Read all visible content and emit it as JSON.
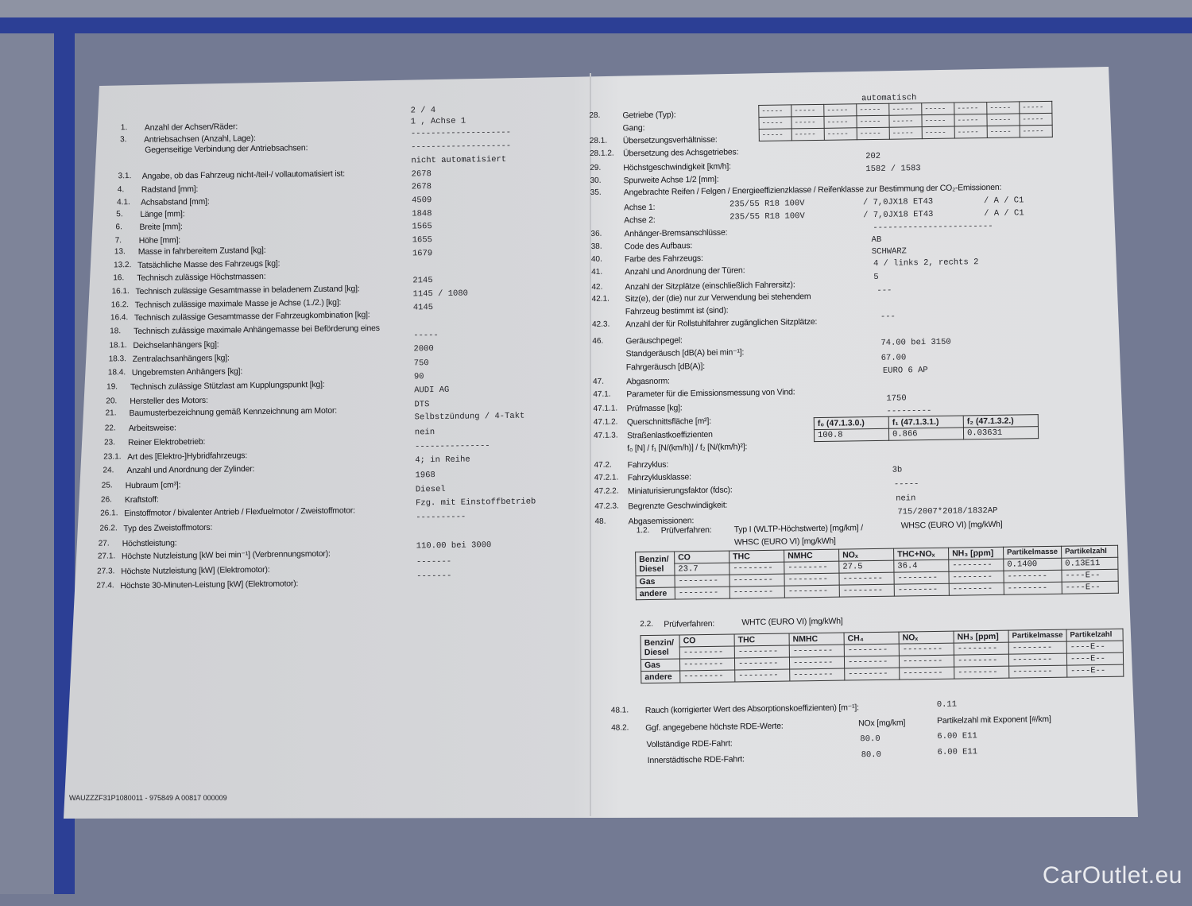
{
  "left": {
    "labels": [
      {
        "num": "1.",
        "text": "Anzahl der Achsen/Räder:"
      },
      {
        "num": "3.",
        "text": "Antriebsachsen (Anzahl, Lage):"
      },
      {
        "num": "",
        "text": "Gegenseitige Verbindung der Antriebsachsen:"
      },
      {
        "num": "3.1.",
        "text": "Angabe, ob das Fahrzeug nicht-/teil-/ vollautomatisiert ist:"
      },
      {
        "num": "4.",
        "text": "Radstand [mm]:"
      },
      {
        "num": "4.1.",
        "text": "Achsabstand [mm]:"
      },
      {
        "num": "5.",
        "text": "Länge [mm]:"
      },
      {
        "num": "6.",
        "text": "Breite [mm]:"
      },
      {
        "num": "7.",
        "text": "Höhe [mm]:"
      },
      {
        "num": "13.",
        "text": "Masse in fahrbereitem Zustand [kg]:"
      },
      {
        "num": "13.2.",
        "text": "Tatsächliche Masse des Fahrzeugs [kg]:"
      },
      {
        "num": "16.",
        "text": "Technisch zulässige Höchstmassen:"
      },
      {
        "num": "16.1.",
        "text": "Technisch zulässige Gesamtmasse in beladenem Zustand [kg]:"
      },
      {
        "num": "16.2.",
        "text": "Technisch zulässige maximale Masse je Achse (1./2.) [kg]:"
      },
      {
        "num": "16.4.",
        "text": "Technisch zulässige Gesamtmasse der Fahrzeugkombination [kg]:"
      },
      {
        "num": "18.",
        "text": "Technisch zulässige maximale Anhängemasse bei Beförderung eines"
      },
      {
        "num": "18.1.",
        "text": "Deichselanhängers [kg]:"
      },
      {
        "num": "18.3.",
        "text": "Zentralachsanhängers [kg]:"
      },
      {
        "num": "18.4.",
        "text": "Ungebremsten Anhängers [kg]:"
      },
      {
        "num": "19.",
        "text": "Technisch zulässige Stützlast am Kupplungspunkt [kg]:"
      },
      {
        "num": "20.",
        "text": "Hersteller des Motors:"
      },
      {
        "num": "21.",
        "text": "Baumusterbezeichnung gemäß Kennzeichnung am Motor:"
      },
      {
        "num": "22.",
        "text": "Arbeitsweise:"
      },
      {
        "num": "23.",
        "text": "Reiner Elektrobetrieb:"
      },
      {
        "num": "23.1.",
        "text": "Art des [Elektro-]Hybridfahrzeugs:"
      },
      {
        "num": "24.",
        "text": "Anzahl und Anordnung der Zylinder:"
      },
      {
        "num": "25.",
        "text": "Hubraum [cm³]:"
      },
      {
        "num": "26.",
        "text": "Kraftstoff:"
      },
      {
        "num": "26.1.",
        "text": "Einstoffmotor / bivalenter Antrieb / Flexfuelmotor / Zweistoffmotor:"
      },
      {
        "num": "26.2.",
        "text": "Typ des Zweistoffmotors:"
      },
      {
        "num": "27.",
        "text": "Höchstleistung:"
      },
      {
        "num": "27.1.",
        "text": "Höchste Nutzleistung [kW bei min⁻¹] (Verbrennungsmotor):"
      },
      {
        "num": "27.3.",
        "text": "Höchste Nutzleistung [kW] (Elektromotor):"
      },
      {
        "num": "27.4.",
        "text": "Höchste 30-Minuten-Leistung [kW] (Elektromotor):"
      }
    ],
    "values": [
      "2  /  4",
      "1  ,  Achse  1",
      "--------------------",
      "--------------------",
      "nicht automatisiert",
      "2678",
      "2678",
      "4509",
      "1848",
      "1565",
      "1655",
      "1679",
      "2145",
      "1145   /  1080",
      "4145",
      "-----",
      "2000",
      "750",
      "90",
      "AUDI AG",
      "DTS",
      "Selbstzündung / 4-Takt",
      "nein",
      "---------------",
      "4; in Reihe",
      "1968",
      "Diesel",
      "Fzg. mit Einstoffbetrieb",
      "----------",
      "110.00  bei 3000",
      "-------",
      "-------"
    ]
  },
  "right": {
    "labels": [
      {
        "num": "28.",
        "text": "Getriebe (Typ):"
      },
      {
        "num": "",
        "text": "Gang:"
      },
      {
        "num": "28.1.",
        "text": "Übersetzungsverhältnisse:"
      },
      {
        "num": "28.1.2.",
        "text": "Übersetzung des Achsgetriebes:"
      },
      {
        "num": "29.",
        "text": "Höchstgeschwindigkeit [km/h]:"
      },
      {
        "num": "30.",
        "text": "Spurweite Achse 1/2 [mm]:"
      },
      {
        "num": "35.",
        "text": "Angebrachte Reifen / Felgen / Energieeffizienzklasse / Reifenklasse zur Bestimmung der CO₂-Emissionen:"
      },
      {
        "num": "",
        "text": "Achse 1:"
      },
      {
        "num": "",
        "text": "Achse 2:"
      },
      {
        "num": "36.",
        "text": "Anhänger-Bremsanschlüsse:"
      },
      {
        "num": "38.",
        "text": "Code des Aufbaus:"
      },
      {
        "num": "40.",
        "text": "Farbe des Fahrzeugs:"
      },
      {
        "num": "41.",
        "text": "Anzahl und Anordnung der Türen:"
      },
      {
        "num": "42.",
        "text": "Anzahl der Sitzplätze (einschließlich Fahrersitz):"
      },
      {
        "num": "42.1.",
        "text": "Sitz(e), der (die) nur zur Verwendung bei stehendem"
      },
      {
        "num": "",
        "text": "Fahrzeug bestimmt ist (sind):"
      },
      {
        "num": "42.3.",
        "text": "Anzahl der für Rollstuhlfahrer zugänglichen Sitzplätze:"
      },
      {
        "num": "46.",
        "text": "Geräuschpegel:"
      },
      {
        "num": "",
        "text": "Standgeräusch [dB(A) bei min⁻¹]:"
      },
      {
        "num": "",
        "text": "Fahrgeräusch [dB(A)]:"
      },
      {
        "num": "47.",
        "text": "Abgasnorm:"
      },
      {
        "num": "47.1.",
        "text": "Parameter für die Emissionsmessung von Vind:"
      },
      {
        "num": "47.1.1.",
        "text": "Prüfmasse [kg]:"
      },
      {
        "num": "47.1.2.",
        "text": "Querschnittsfläche [m²]:"
      },
      {
        "num": "47.1.3.",
        "text": "Straßenlastkoeffizienten"
      },
      {
        "num": "",
        "text": "f₀ [N] / f₁ [N/(km/h)] / f₂ [N/(km/h)²]:"
      },
      {
        "num": "47.2.",
        "text": "Fahrzyklus:"
      },
      {
        "num": "47.2.1.",
        "text": "Fahrzyklusklasse:"
      },
      {
        "num": "47.2.2.",
        "text": "Miniaturisierungsfaktor (fdsc):"
      },
      {
        "num": "47.2.3.",
        "text": "Begrenzte Geschwindigkeit:"
      },
      {
        "num": "48.",
        "text": "Abgasemissionen:"
      }
    ],
    "values": [
      "automatisch",
      "202",
      "1582  /  1583",
      "235/55 R18 100V",
      "235/55 R18 100V",
      "/ 7,0JX18 ET43",
      "/ 7,0JX18 ET43",
      "/ A    / C1",
      "/ A    / C1",
      "------------------------",
      "AB",
      "SCHWARZ",
      "4   / links 2, rechts 2",
      "5",
      "---",
      "---",
      "74.00  bei 3150",
      "67.00",
      "EURO 6 AP",
      "1750",
      "---------",
      "3b",
      "-----",
      "nein",
      "715/2007*2018/1832AP"
    ],
    "gear_grid": {
      "rows": 3,
      "cols": 9,
      "cell": "-----"
    },
    "road_load": {
      "headers": [
        "f₀ (47.1.3.0.)",
        "f₁ (47.1.3.1.)",
        "f₂ (47.1.3.2.)"
      ],
      "values": [
        "100.8",
        "0.866",
        "0.03631"
      ]
    },
    "test12": {
      "num": "1.2.",
      "label": "Prüfverfahren:",
      "proc1": "Typ I (WLTP-Höchstwerte) [mg/km] /",
      "proc2": "WHSC (EURO VI) [mg/kWh]",
      "proc3": "WHSC (EURO VI) [mg/kWh]",
      "headers": [
        "CO",
        "THC",
        "NMHC",
        "NOₓ",
        "THC+NOₓ",
        "NH₃ [ppm]",
        "Partikelmasse",
        "Partikelzahl"
      ],
      "rows": [
        {
          "name": "Benzin/ Diesel",
          "cells": [
            "23.7",
            "--------",
            "--------",
            "27.5",
            "36.4",
            "--------",
            "0.1400",
            "0.13E11"
          ]
        },
        {
          "name": "Gas",
          "cells": [
            "--------",
            "--------",
            "--------",
            "--------",
            "--------",
            "--------",
            "--------",
            "----E--"
          ]
        },
        {
          "name": "andere",
          "cells": [
            "--------",
            "--------",
            "--------",
            "--------",
            "--------",
            "--------",
            "--------",
            "----E--"
          ]
        }
      ]
    },
    "test22": {
      "num": "2.2.",
      "label": "Prüfverfahren:",
      "proc": "WHTC (EURO VI) [mg/kWh]",
      "headers": [
        "CO",
        "THC",
        "NMHC",
        "CH₄",
        "NOₓ",
        "NH₃ [ppm]",
        "Partikelmasse",
        "Partikelzahl"
      ],
      "rows": [
        {
          "name": "Benzin/ Diesel",
          "cells": [
            "--------",
            "--------",
            "--------",
            "--------",
            "--------",
            "--------",
            "--------",
            "----E--"
          ]
        },
        {
          "name": "Gas",
          "cells": [
            "--------",
            "--------",
            "--------",
            "--------",
            "--------",
            "--------",
            "--------",
            "----E--"
          ]
        },
        {
          "name": "andere",
          "cells": [
            "--------",
            "--------",
            "--------",
            "--------",
            "--------",
            "--------",
            "--------",
            "----E--"
          ]
        }
      ]
    },
    "smoke": {
      "num": "48.1.",
      "label": "Rauch (korrigierter Wert des Absorptionskoeffizienten) [m⁻¹]:",
      "value": "0.11"
    },
    "rde": {
      "num": "48.2.",
      "label": "Ggf. angegebene höchste RDE-Werte:",
      "col1": "NOx [mg/km]",
      "col2": "Partikelzahl mit Exponent [#/km]",
      "rows": [
        {
          "label": "Vollständige RDE-Fahrt:",
          "nox": "80.0",
          "pn": "6.00 E11"
        },
        {
          "label": "Innerstädtische RDE-Fahrt:",
          "nox": "80.0",
          "pn": "6.00 E11"
        }
      ]
    }
  },
  "footer": "WAUZZZF31P1080011 - 975849 A 00817 000009",
  "watermark": "CarOutlet.eu"
}
